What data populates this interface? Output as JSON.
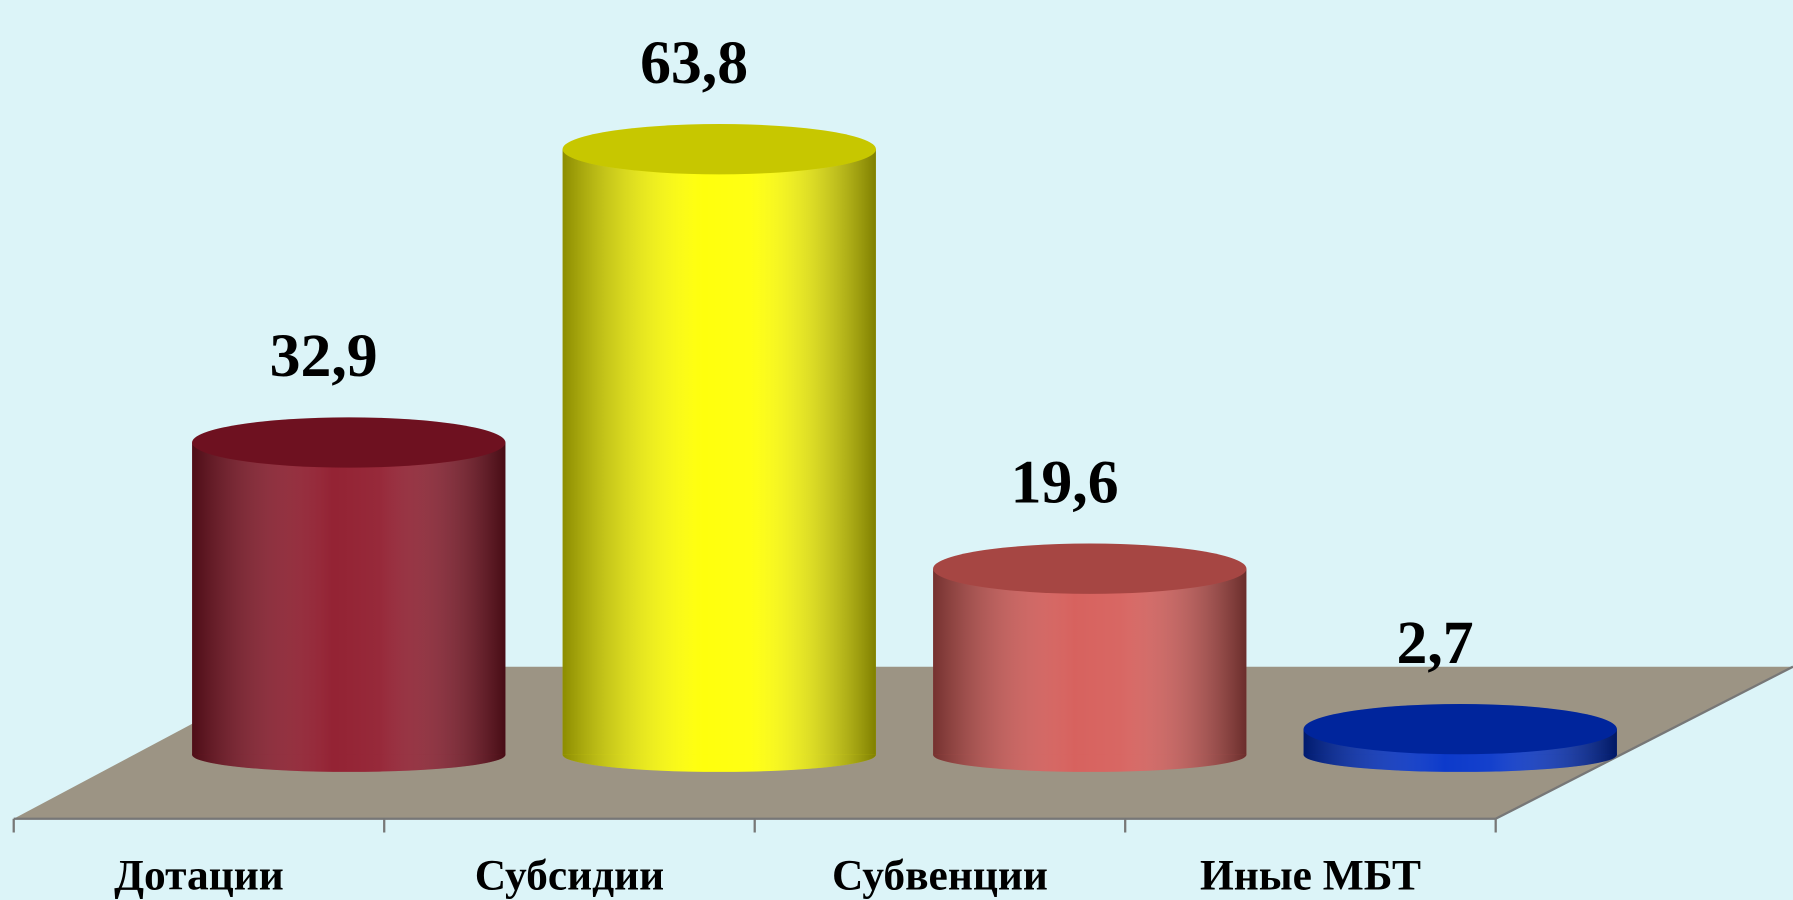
{
  "chart_data": {
    "type": "bar",
    "categories": [
      "Дотации",
      "Субсидии",
      "Субвенции",
      "Иные МБТ"
    ],
    "values": [
      32.9,
      63.8,
      19.6,
      2.7
    ],
    "value_labels": [
      "32,9",
      "63,8",
      "19,6",
      "2,7"
    ],
    "colors": [
      "#8e1729",
      "#ffff00",
      "#d55a56",
      "#0030c8"
    ]
  }
}
